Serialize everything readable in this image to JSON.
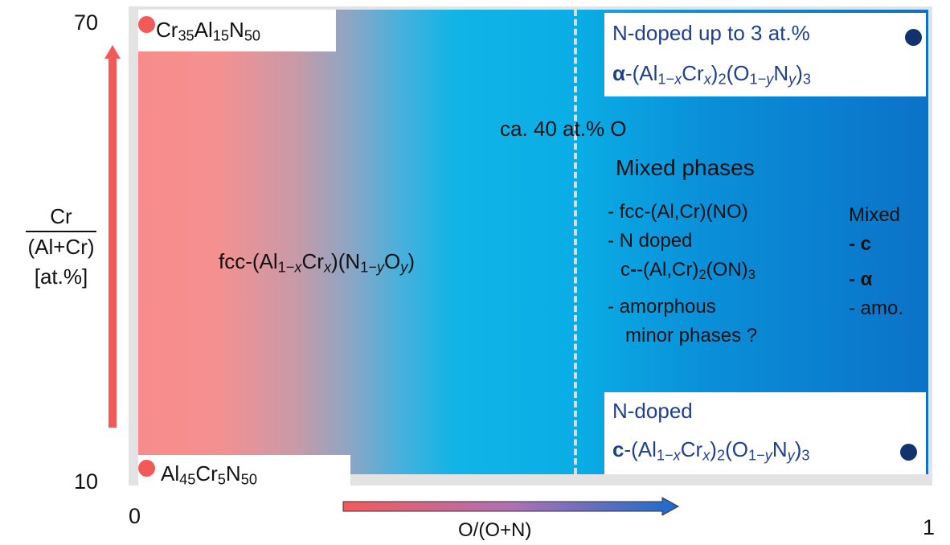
{
  "y_axis": {
    "top_value": "70",
    "bottom_value": "10",
    "numerator": "Cr",
    "denominator": "(Al+Cr)",
    "unit": "[at.%]"
  },
  "x_axis": {
    "left_value": "0",
    "right_value": "1",
    "label": "O/(O+N)"
  },
  "compositions": {
    "top_left": {
      "el1": "Cr",
      "n1": "35",
      "el2": "Al",
      "n2": "15",
      "el3": "N",
      "n3": "50"
    },
    "bottom_left": {
      "el1": "Al",
      "n1": "45",
      "el2": "Cr",
      "n2": "5",
      "el3": "N",
      "n3": "50"
    }
  },
  "fcc_region": {
    "p1": "fcc-(Al",
    "s1": "1−",
    "x": "x",
    "p2": "Cr",
    "x2": "x",
    "p3": ")(N",
    "s2": "1−",
    "y": "y",
    "p4": "O",
    "y2": "y",
    "p5": ")"
  },
  "threshold_label": "ca. 40 at.% O",
  "mixed_phases": {
    "title": "Mixed phases",
    "item1": "- fcc-(Al,Cr)(NO)",
    "item2a": "- N doped",
    "item2b_a": "c",
    "item2b_b": "-(Al,Cr)",
    "item2b_sub1": "2",
    "item2b_c": "(ON)",
    "item2b_sub2": "3",
    "item3a": "- amorphous",
    "item3b": "minor phases ?"
  },
  "mixed_right": {
    "title": "Mixed",
    "c": "- c",
    "alpha": "- α",
    "amo": "- amo."
  },
  "top_right_box": {
    "line1": "N-doped up to 3 at.%",
    "phase": "α",
    "a": "-(Al",
    "s1": "1−",
    "x": "x",
    "b": "Cr",
    "x2": "x",
    "c": ")",
    "two": "2",
    "d": "(O",
    "s2": "1−",
    "y": "y",
    "e": "N",
    "y2": "y",
    "f": ")",
    "three": "3"
  },
  "bottom_right_box": {
    "line1": "N-doped",
    "phase": "c",
    "a": "-(Al",
    "s1": "1−",
    "x": "x",
    "b": "Cr",
    "x2": "x",
    "c": ")",
    "two": "2",
    "d": "(O",
    "s2": "1−",
    "y": "y",
    "e": "N",
    "y2": "y",
    "f": ")",
    "three": "3"
  },
  "colors": {
    "red_arrow": "#f25a5a",
    "red_dot": "#f25a5a",
    "navy_dot": "#12326e",
    "label_blue": "#1f3f8f",
    "gradient_left": "#f88c8c",
    "gradient_mid": "#10b4e6",
    "gradient_right": "#0b72c8"
  }
}
